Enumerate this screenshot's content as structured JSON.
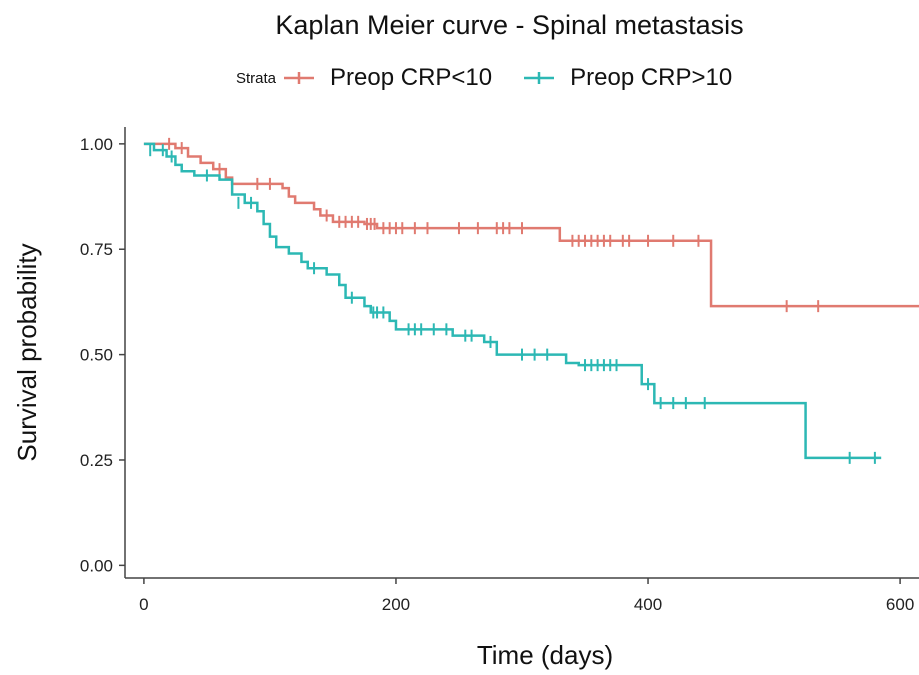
{
  "chart_data": {
    "type": "line",
    "subtype": "kaplan-meier step curve with censor marks",
    "title": "Kaplan Meier curve - Spinal metastasis",
    "xlabel": "Time (days)",
    "ylabel": "Survival probability",
    "xlim": [
      -15,
      615
    ],
    "ylim": [
      -0.03,
      1.04
    ],
    "xticks": [
      0,
      200,
      400,
      600
    ],
    "xtick_labels": [
      "0",
      "200",
      "400",
      "600"
    ],
    "yticks": [
      0,
      0.25,
      0.5,
      0.75,
      1.0
    ],
    "ytick_labels": [
      "0.00",
      "0.25",
      "0.50",
      "0.75",
      "1.00"
    ],
    "grid": false,
    "legend_title": "Strata",
    "legend_position": "top",
    "series": [
      {
        "name": "Preop CRP<10",
        "color": "#E07A70",
        "steps": [
          [
            0,
            1.0
          ],
          [
            25,
            0.99
          ],
          [
            35,
            0.97
          ],
          [
            45,
            0.955
          ],
          [
            55,
            0.94
          ],
          [
            65,
            0.92
          ],
          [
            70,
            0.905
          ],
          [
            110,
            0.895
          ],
          [
            115,
            0.875
          ],
          [
            120,
            0.86
          ],
          [
            135,
            0.845
          ],
          [
            140,
            0.83
          ],
          [
            150,
            0.815
          ],
          [
            175,
            0.81
          ],
          [
            185,
            0.8
          ],
          [
            330,
            0.77
          ],
          [
            450,
            0.615
          ],
          [
            615,
            0.615
          ]
        ],
        "censored": [
          [
            20,
            1.0
          ],
          [
            30,
            0.99
          ],
          [
            60,
            0.94
          ],
          [
            90,
            0.905
          ],
          [
            100,
            0.905
          ],
          [
            145,
            0.83
          ],
          [
            155,
            0.815
          ],
          [
            160,
            0.815
          ],
          [
            165,
            0.815
          ],
          [
            170,
            0.815
          ],
          [
            177,
            0.81
          ],
          [
            180,
            0.81
          ],
          [
            183,
            0.81
          ],
          [
            190,
            0.8
          ],
          [
            195,
            0.8
          ],
          [
            200,
            0.8
          ],
          [
            205,
            0.8
          ],
          [
            215,
            0.8
          ],
          [
            225,
            0.8
          ],
          [
            250,
            0.8
          ],
          [
            265,
            0.8
          ],
          [
            280,
            0.8
          ],
          [
            285,
            0.8
          ],
          [
            290,
            0.8
          ],
          [
            300,
            0.8
          ],
          [
            340,
            0.77
          ],
          [
            345,
            0.77
          ],
          [
            350,
            0.77
          ],
          [
            355,
            0.77
          ],
          [
            360,
            0.77
          ],
          [
            365,
            0.77
          ],
          [
            370,
            0.77
          ],
          [
            380,
            0.77
          ],
          [
            385,
            0.77
          ],
          [
            400,
            0.77
          ],
          [
            420,
            0.77
          ],
          [
            440,
            0.77
          ],
          [
            510,
            0.615
          ],
          [
            535,
            0.615
          ]
        ]
      },
      {
        "name": "Preop CRP>10",
        "color": "#2CB8B4",
        "steps": [
          [
            0,
            1.0
          ],
          [
            8,
            0.985
          ],
          [
            18,
            0.97
          ],
          [
            25,
            0.95
          ],
          [
            30,
            0.935
          ],
          [
            40,
            0.925
          ],
          [
            60,
            0.915
          ],
          [
            70,
            0.88
          ],
          [
            80,
            0.86
          ],
          [
            90,
            0.84
          ],
          [
            95,
            0.81
          ],
          [
            100,
            0.78
          ],
          [
            105,
            0.755
          ],
          [
            115,
            0.74
          ],
          [
            125,
            0.72
          ],
          [
            130,
            0.705
          ],
          [
            145,
            0.69
          ],
          [
            155,
            0.665
          ],
          [
            160,
            0.635
          ],
          [
            175,
            0.615
          ],
          [
            180,
            0.6
          ],
          [
            195,
            0.58
          ],
          [
            200,
            0.56
          ],
          [
            245,
            0.545
          ],
          [
            270,
            0.53
          ],
          [
            280,
            0.5
          ],
          [
            335,
            0.48
          ],
          [
            345,
            0.475
          ],
          [
            395,
            0.43
          ],
          [
            405,
            0.385
          ],
          [
            525,
            0.255
          ],
          [
            585,
            0.255
          ]
        ],
        "censored": [
          [
            5,
            0.985
          ],
          [
            15,
            0.985
          ],
          [
            22,
            0.97
          ],
          [
            50,
            0.925
          ],
          [
            75,
            0.86
          ],
          [
            85,
            0.86
          ],
          [
            135,
            0.705
          ],
          [
            165,
            0.635
          ],
          [
            182,
            0.6
          ],
          [
            185,
            0.6
          ],
          [
            190,
            0.6
          ],
          [
            210,
            0.56
          ],
          [
            215,
            0.56
          ],
          [
            220,
            0.56
          ],
          [
            230,
            0.56
          ],
          [
            240,
            0.56
          ],
          [
            255,
            0.545
          ],
          [
            260,
            0.545
          ],
          [
            275,
            0.53
          ],
          [
            300,
            0.5
          ],
          [
            310,
            0.5
          ],
          [
            320,
            0.5
          ],
          [
            350,
            0.475
          ],
          [
            355,
            0.475
          ],
          [
            360,
            0.475
          ],
          [
            365,
            0.475
          ],
          [
            370,
            0.475
          ],
          [
            375,
            0.475
          ],
          [
            400,
            0.43
          ],
          [
            410,
            0.385
          ],
          [
            420,
            0.385
          ],
          [
            430,
            0.385
          ],
          [
            445,
            0.385
          ],
          [
            560,
            0.255
          ],
          [
            580,
            0.255
          ]
        ]
      }
    ]
  }
}
